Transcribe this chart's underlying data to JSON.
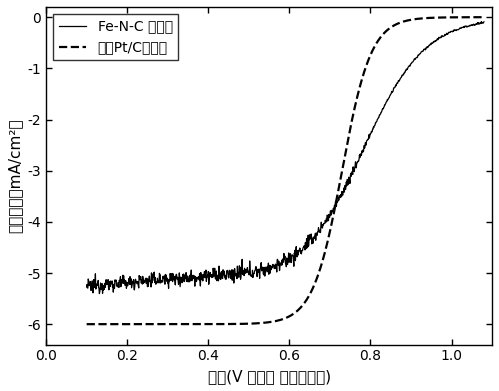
{
  "title": "",
  "xlabel": "电位(V 相对于 可逆氢电极)",
  "ylabel": "电流密度（mA/cm²）",
  "legend_fe": "Fe-N-C 傅化剂",
  "legend_pt": "商业Pt/C傅化剂",
  "xlim": [
    0.0,
    1.1
  ],
  "ylim": [
    -6.4,
    0.2
  ],
  "xticks": [
    0.0,
    0.2,
    0.4,
    0.6,
    0.8,
    1.0
  ],
  "yticks": [
    0,
    -1,
    -2,
    -3,
    -4,
    -5,
    -6
  ],
  "line_color": "#000000",
  "background_color": "#ffffff",
  "figsize": [
    4.99,
    3.91
  ],
  "dpi": 100,
  "fe_ilim": -5.35,
  "fe_half_wave": 0.78,
  "fe_steepness": 13,
  "pt_ilim": -6.0,
  "pt_half_wave": 0.73,
  "pt_steepness": 28,
  "noise_level_flat": 0.07,
  "noise_level_transition": 0.04
}
